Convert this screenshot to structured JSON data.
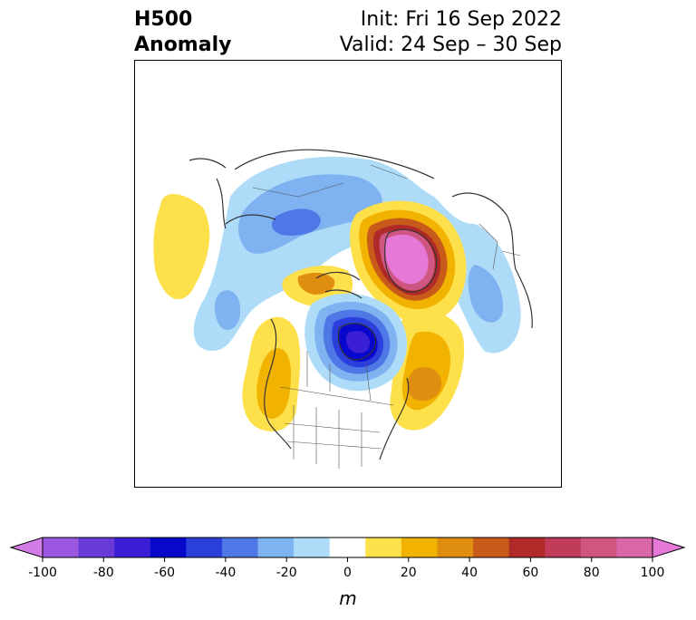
{
  "header": {
    "title_line1": "H500",
    "title_line2": "Anomaly",
    "init_text": "Init: Fri 16 Sep 2022",
    "valid_text": "Valid: 24 Sep – 30 Sep"
  },
  "map": {
    "variable": "500 hPa geopotential height anomaly",
    "projection": "polar-stereographic-north",
    "features": [
      {
        "name": "positive-anomaly-greenland-iceland",
        "peak_value": 95,
        "color": "#e64dc8"
      },
      {
        "name": "negative-anomaly-hudson-bay",
        "peak_value": -65,
        "color": "#0a0acc"
      },
      {
        "name": "positive-anomaly-western-usa",
        "peak_value": 20,
        "color": "#f2b200"
      },
      {
        "name": "positive-anomaly-eastern-canada",
        "peak_value": 35,
        "color": "#e08e10"
      },
      {
        "name": "positive-anomaly-north-pacific",
        "peak_value": 15,
        "color": "#fde04a"
      },
      {
        "name": "negative-anomaly-siberia",
        "peak_value": -45,
        "color": "#4a6ee6"
      },
      {
        "name": "negative-anomaly-north-atlantic",
        "peak_value": -30,
        "color": "#6fa7f0"
      }
    ]
  },
  "colorbar": {
    "unit": "m",
    "min": -100,
    "max": 100,
    "extend": "both",
    "ticks": [
      "-100",
      "-80",
      "-60",
      "-40",
      "-20",
      "0",
      "20",
      "40",
      "60",
      "80",
      "100"
    ],
    "colors": [
      "#d37be6",
      "#9b57e0",
      "#6a3ad8",
      "#3a1fd6",
      "#0808cc",
      "#2a3fdb",
      "#4f78e6",
      "#7eb2f0",
      "#aedcf8",
      "#ffffff",
      "#fde04a",
      "#f2b200",
      "#e08e10",
      "#c85a1a",
      "#b02a2a",
      "#c03c58",
      "#cf5680",
      "#d866a8",
      "#e678d8"
    ]
  }
}
